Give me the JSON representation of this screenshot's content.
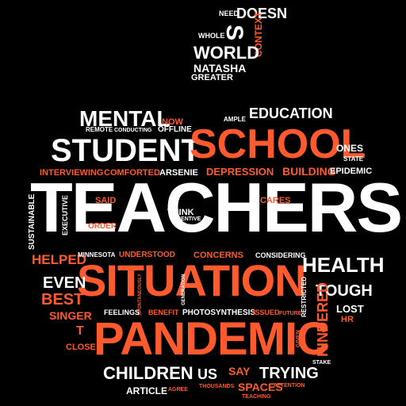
{
  "colors": {
    "background": "#000000",
    "white": "#ffffff",
    "accent": "#ff5a2e"
  },
  "words": {
    "need": "NEED",
    "doesn": "DOESN",
    "s": "S",
    "context": "CONTEXT",
    "whole": "WHOLE",
    "world": "WORLD",
    "natasha": "NATASHA",
    "greater": "GREATER",
    "mental": "MENTAL",
    "ample": "AMPLE",
    "education": "EDUCATION",
    "now": "NOW",
    "remote": "REMOTE",
    "conducting": "CONDUCTING",
    "offline": "OFFLINE",
    "student": "STUDENT",
    "school": "SCHOOL",
    "ones": "ONES",
    "state": "STATE",
    "interviewing": "INTERVIEWING",
    "comforted": "COMFORTED",
    "arsenie": "ARSENIE",
    "depression": "DEPRESSION",
    "building": "BUILDING",
    "epidemic": "EPIDEMIC",
    "teachers": "TEACHERS",
    "sustainable": "SUSTAINABLE",
    "executive": "EXECUTIVE",
    "said": "SAID",
    "think": "THINK",
    "incentive": "INCENTIVE",
    "cares": "CARES",
    "order": "ORDER",
    "helped": "HELPED",
    "minnesota": "MINNESOTA",
    "understood": "UNDERSTOOD",
    "concerns": "CONCERNS",
    "considering": "CONSIDERING",
    "health": "HEALTH",
    "situation": "SITUATION",
    "even": "EVEN",
    "best": "BEST",
    "spontaneously": "SPONTANEOUSLY",
    "generation": "GENERATION",
    "tough": "TOUGH",
    "restricted": "RESTRICTED",
    "singer": "SINGER",
    "feelings": "FEELINGS",
    "benefit": "BENEFIT",
    "photosynthesis": "PHOTOSYNTHESIS",
    "issued": "ISSUED",
    "future": "FUTURE",
    "lost": "LOST",
    "hr": "HR",
    "hindered": "HINDERED",
    "pandemic": "PANDEMIC",
    "t": "T",
    "close": "CLOSE",
    "given": "GIVEN",
    "stake": "STAKE",
    "children": "CHILDREN",
    "us": "US",
    "say": "SAY",
    "trying": "TRYING",
    "article": "ARTICLE",
    "agree": "AGREE",
    "thousands": "THOUSANDS",
    "spaces": "SPACES",
    "attention": "ATTENTION",
    "teaching": "TEACHING"
  }
}
